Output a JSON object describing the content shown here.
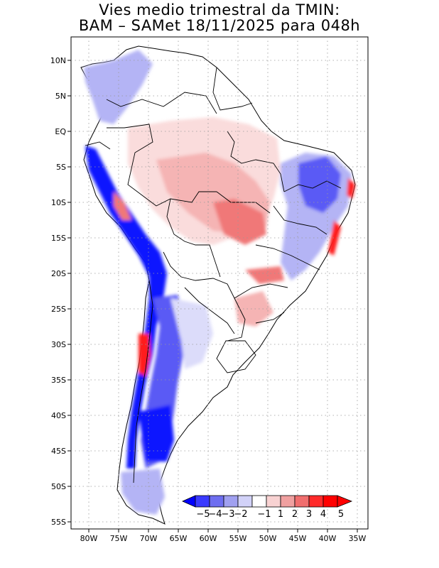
{
  "title": {
    "line1": "Vies medio trimestral da TMIN:",
    "line2": "BAM – SAMet 18/11/2025  para 048h"
  },
  "axes": {
    "lon_labels": [
      "80W",
      "75W",
      "70W",
      "65W",
      "60W",
      "55W",
      "50W",
      "45W",
      "40W",
      "35W"
    ],
    "lat_labels": [
      "10N",
      "5N",
      "EQ",
      "5S",
      "10S",
      "15S",
      "20S",
      "25S",
      "30S",
      "35S",
      "40S",
      "45S",
      "50S",
      "55S"
    ]
  },
  "colorbar": {
    "labels": [
      "−5",
      "−4",
      "−3",
      "−2",
      "−1",
      "1",
      "2",
      "3",
      "4",
      "5"
    ],
    "colors": [
      "#0000ff",
      "#3a3aff",
      "#6e6ef0",
      "#a0a0f0",
      "#d2d2f8",
      "#ffffff",
      "#f8d2d2",
      "#f0a0a0",
      "#f06e6e",
      "#ff2a2a",
      "#ff0000"
    ]
  },
  "colors": {
    "strong_blue": "#0a14ff",
    "mid_blue": "#5a5af5",
    "light_blue": "#b4b4f5",
    "pale_blue": "#dcdcfa",
    "pale_red": "#fadcdc",
    "light_red": "#f5b4b4",
    "mid_red": "#f07878",
    "strong_red": "#ff1e1e"
  }
}
